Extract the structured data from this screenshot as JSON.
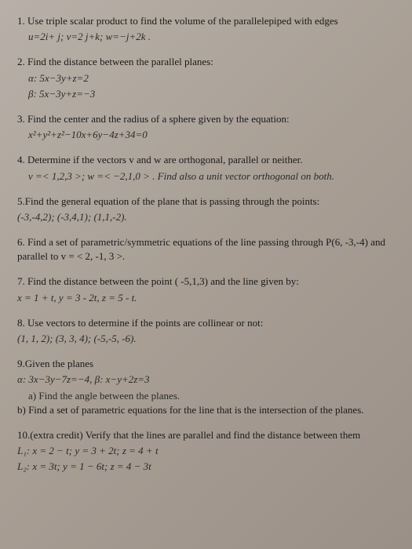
{
  "problems": {
    "p1": {
      "text": "1. Use triple scalar product to find the volume of the parallelepiped with edges",
      "eq": "u=2i+ j;    v=2 j+k;    w=−j+2k ."
    },
    "p2": {
      "text": "2. Find the distance between the parallel planes:",
      "alpha": "α:  5x−3y+z=2",
      "beta": "β:  5x−3y+z=−3"
    },
    "p3": {
      "text": "3. Find the center and the radius of a sphere given by the equation:",
      "eq": "x²+y²+z²−10x+6y−4z+34=0"
    },
    "p4": {
      "text": "4. Determine if the vectors v and w are orthogonal, parallel or neither.",
      "eq": "v =< 1,2,3 >; w =< −2,1,0 > . Find also a unit vector orthogonal on both."
    },
    "p5": {
      "text": "5.Find the general equation of the plane that is passing through the points:",
      "eq": "(-3,-4,2); (-3,4,1); (1,1,-2)."
    },
    "p6": {
      "text": "6. Find a set of parametric/symmetric equations of the line passing through P(6, -3,-4) and parallel to v = < 2, -1, 3 >."
    },
    "p7": {
      "text": "7. Find the distance between the point ( -5,1,3) and the line given by:",
      "eq": "x = 1 + t,   y = 3 - 2t,   z = 5 - t."
    },
    "p8": {
      "text": "8. Use vectors to determine if the points are collinear or not:",
      "eq": "(1, 1, 2); (3, 3, 4); (-5,-5, -6)."
    },
    "p9": {
      "text": "9.Given the planes",
      "eq": "α:  3x−3y−7z=−4,     β:  x−y+2z=3",
      "a": "a)  Find the angle between the planes.",
      "b": "b) Find a set of parametric equations for the line that is the intersection of the planes."
    },
    "p10": {
      "text": "10.(extra credit) Verify that the lines are parallel and find the distance between them",
      "l1": "L₁: x = 2 − t; y = 3 + 2t; z = 4 + t",
      "l2": "L₂: x = 3t; y = 1 − 6t; z = 4 − 3t"
    }
  }
}
